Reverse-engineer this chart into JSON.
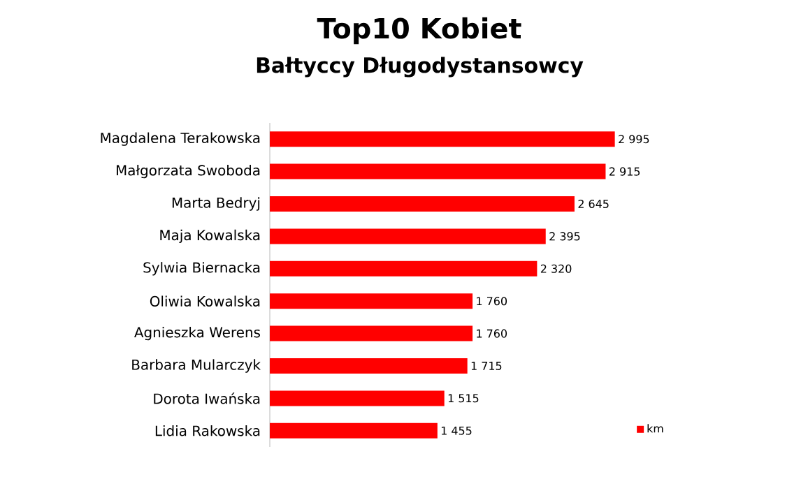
{
  "chart_data": {
    "type": "bar",
    "orientation": "horizontal",
    "title": "Top10 Kobiet",
    "subtitle": "Bałtyccy Długodystansowcy",
    "categories": [
      "Magdalena Terakowska",
      "Małgorzata Swoboda",
      "Marta Bedryj",
      "Maja Kowalska",
      "Sylwia Biernacka",
      "Oliwia Kowalska",
      "Agnieszka Werens",
      "Barbara Mularczyk",
      "Dorota Iwańska",
      "Lidia Rakowska"
    ],
    "series": [
      {
        "name": "km",
        "color": "#ff0000",
        "values": [
          2995,
          2915,
          2645,
          2395,
          2320,
          1760,
          1760,
          1715,
          1515,
          1455
        ],
        "value_labels": [
          "2 995",
          "2 915",
          "2 645",
          "2 395",
          "2 320",
          "1 760",
          "1 760",
          "1 715",
          "1 515",
          "1 455"
        ]
      }
    ],
    "legend": "bottom right"
  }
}
